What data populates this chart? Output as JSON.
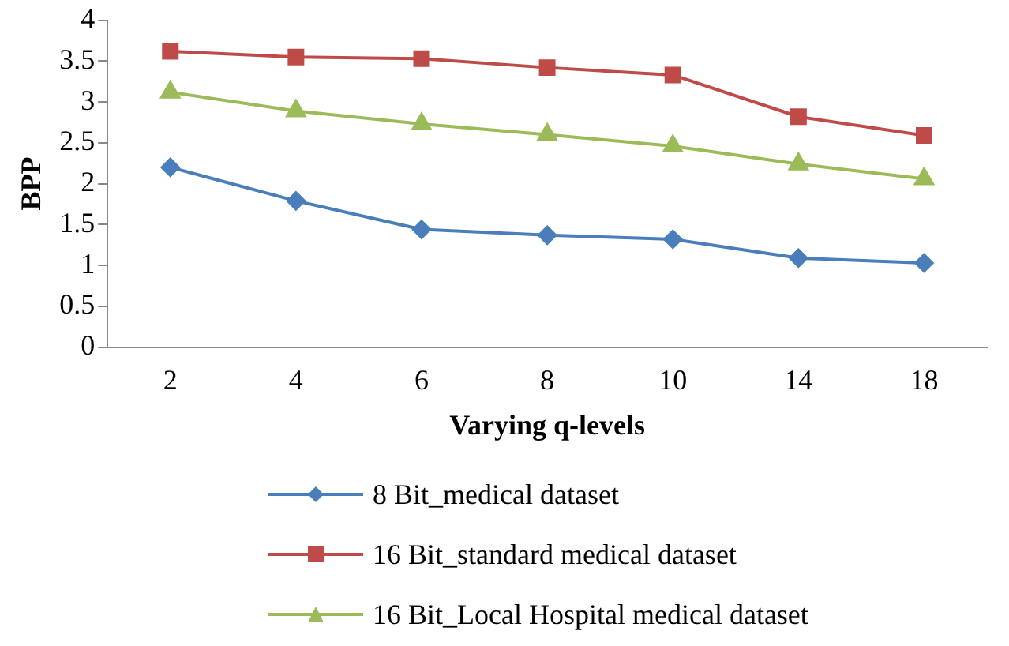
{
  "chart_data": {
    "type": "line",
    "xlabel": "Varying q-levels",
    "ylabel": "BPP",
    "categories": [
      "2",
      "4",
      "6",
      "8",
      "10",
      "14",
      "18"
    ],
    "series": [
      {
        "name": "8 Bit_medical dataset",
        "color": "#4a7ebb",
        "marker": "diamond",
        "values": [
          2.2,
          1.79,
          1.44,
          1.37,
          1.32,
          1.09,
          1.03
        ]
      },
      {
        "name": "16 Bit_standard medical dataset",
        "color": "#be4b48",
        "marker": "square",
        "values": [
          3.62,
          3.55,
          3.53,
          3.42,
          3.33,
          2.82,
          2.59
        ]
      },
      {
        "name": "16 Bit_Local Hospital medical dataset",
        "color": "#9bbb59",
        "marker": "triangle",
        "values": [
          3.12,
          2.89,
          2.73,
          2.6,
          2.46,
          2.24,
          2.06
        ]
      }
    ],
    "ylim": [
      0,
      4
    ],
    "yticks": [
      0,
      0.5,
      1,
      1.5,
      2,
      2.5,
      3,
      3.5,
      4
    ],
    "grid": false,
    "legend": "bottom"
  }
}
